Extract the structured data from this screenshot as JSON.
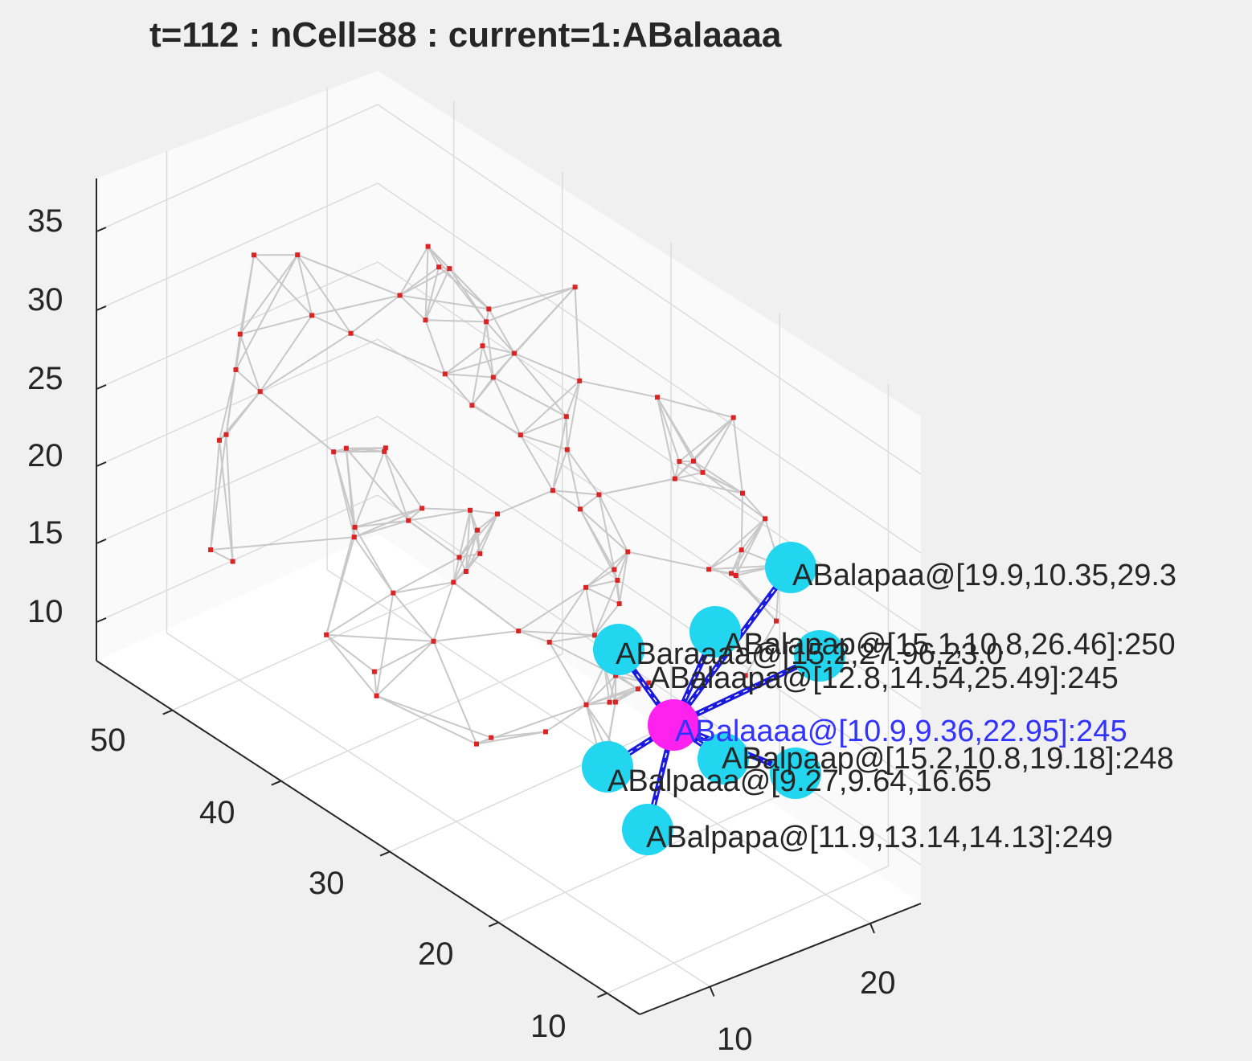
{
  "chart_data": {
    "type": "scatter",
    "title": "t=112 : nCell=88 : current=1:ABalaaaa",
    "xlabel": "",
    "ylabel": "",
    "zlabel": "",
    "grid": true,
    "axes": {
      "x_ticks": [
        "10",
        "20"
      ],
      "y_ticks": [
        "10",
        "20",
        "30",
        "40",
        "50"
      ],
      "z_ticks": [
        "10",
        "15",
        "20",
        "25",
        "30",
        "35"
      ]
    },
    "current_cell": {
      "label": "ABalaaaa@[10.9,9.36,22.95]:245",
      "x": 10.9,
      "y": 9.36,
      "z": 22.95,
      "value": 245
    },
    "neighbor_labels": [
      "ABalapaa@[19.9,10.35,29.3",
      "ABalapap@[15.1,10.8,26.46]:250",
      "ABalpaap@[15.2,10.8,19.18]:248",
      "ABalpaaa@[9.27,9.64,16.65",
      "ABalpapa@[11.9,13.14,14.13]:249",
      "ABalaapa@[12.8,14.54,25.49]:245",
      "ABaraaaa@[15.2,27.96,23.0"
    ],
    "colors": {
      "background": "#f0f0f0",
      "axes_face": "#ffffff",
      "mesh": "#c8c8c8",
      "cell_marker": "#dd2222",
      "current_marker": "#ff22ee",
      "neighbor_marker": "#22d6f0",
      "connection": "#1a1adf",
      "current_label": "#3333ff"
    }
  }
}
